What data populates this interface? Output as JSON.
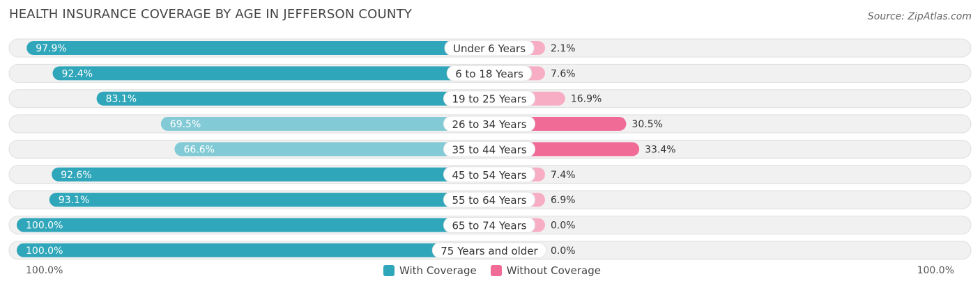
{
  "header": {
    "title": "HEALTH INSURANCE COVERAGE BY AGE IN JEFFERSON COUNTY",
    "source": "Source: ZipAtlas.com"
  },
  "axis": {
    "left_label": "100.0%",
    "right_label": "100.0%"
  },
  "legend": {
    "with": {
      "label": "With Coverage",
      "color": "#2fa6b9"
    },
    "without": {
      "label": "Without Coverage",
      "color": "#f06b95"
    }
  },
  "chart_data": {
    "type": "bar",
    "title": "HEALTH INSURANCE COVERAGE BY AGE IN JEFFERSON COUNTY",
    "categories": [
      "Under 6 Years",
      "6 to 18 Years",
      "19 to 25 Years",
      "26 to 34 Years",
      "35 to 44 Years",
      "45 to 54 Years",
      "55 to 64 Years",
      "65 to 74 Years",
      "75 Years and older"
    ],
    "series": [
      {
        "name": "With Coverage",
        "values": [
          97.9,
          92.4,
          83.1,
          69.5,
          66.6,
          92.6,
          93.1,
          100.0,
          100.0
        ],
        "labels": [
          "97.9%",
          "92.4%",
          "83.1%",
          "69.5%",
          "66.6%",
          "92.6%",
          "93.1%",
          "100.0%",
          "100.0%"
        ]
      },
      {
        "name": "Without Coverage",
        "values": [
          2.1,
          7.6,
          16.9,
          30.5,
          33.4,
          7.4,
          6.9,
          0.0,
          0.0
        ],
        "labels": [
          "2.1%",
          "7.6%",
          "16.9%",
          "30.5%",
          "33.4%",
          "7.4%",
          "6.9%",
          "0.0%",
          "0.0%"
        ]
      }
    ],
    "xlim": [
      0,
      100
    ],
    "legend_position": "bottom-center"
  }
}
